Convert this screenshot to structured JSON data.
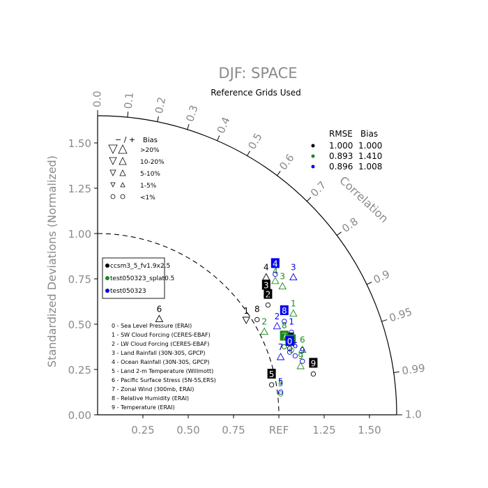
{
  "chart_data": {
    "type": "scatter",
    "title": "DJF: SPACE",
    "subtitle": "Reference Grids Used",
    "ylabel": "Standardized Deviations (Normalized)",
    "angular_label": "Correlation",
    "xlim": [
      0,
      1.65
    ],
    "ylim": [
      0,
      1.65
    ],
    "x_ticks": [
      {
        "value": 0.25,
        "label": "0.25"
      },
      {
        "value": 0.5,
        "label": "0.50"
      },
      {
        "value": 0.75,
        "label": "0.75"
      },
      {
        "value": 1.0,
        "label": "REF"
      },
      {
        "value": 1.25,
        "label": "1.25"
      },
      {
        "value": 1.5,
        "label": "1.50"
      }
    ],
    "y_ticks": [
      {
        "value": 0.0,
        "label": "0.00"
      },
      {
        "value": 0.25,
        "label": "0.25"
      },
      {
        "value": 0.5,
        "label": "0.50"
      },
      {
        "value": 0.75,
        "label": "0.75"
      },
      {
        "value": 1.0,
        "label": "1.00"
      },
      {
        "value": 1.25,
        "label": "1.25"
      },
      {
        "value": 1.5,
        "label": "1.50"
      }
    ],
    "correlation_ticks": [
      {
        "value": 0.0,
        "label": "0.0"
      },
      {
        "value": 0.1,
        "label": "0.1"
      },
      {
        "value": 0.2,
        "label": "0.2"
      },
      {
        "value": 0.3,
        "label": "0.3"
      },
      {
        "value": 0.4,
        "label": "0.4"
      },
      {
        "value": 0.5,
        "label": "0.5"
      },
      {
        "value": 0.6,
        "label": "0.6"
      },
      {
        "value": 0.7,
        "label": "0.7"
      },
      {
        "value": 0.8,
        "label": "0.8"
      },
      {
        "value": 0.9,
        "label": "0.9"
      },
      {
        "value": 0.95,
        "label": "0.95"
      },
      {
        "value": 0.99,
        "label": "0.99"
      },
      {
        "value": 1.0,
        "label": "1.0"
      }
    ],
    "ref_arc_radius": 1.0,
    "outer_arc_radius": 1.65,
    "bias_legend": {
      "header_symbols": "− / +",
      "header_label": "Bias",
      "rows": [
        {
          "label": ">20%",
          "size": 12
        },
        {
          "label": "10-20%",
          "size": 10
        },
        {
          "label": "5-10%",
          "size": 8
        },
        {
          "label": "1-5%",
          "size": 6
        },
        {
          "label": "<1%",
          "size": 5,
          "shape": "circle"
        }
      ]
    },
    "stats_legend": {
      "header_rmse": "RMSE",
      "header_bias": "Bias",
      "rows": [
        {
          "color": "#000000",
          "rmse": "1.000",
          "bias": "1.000"
        },
        {
          "color": "#1a8a1a",
          "rmse": "0.893",
          "bias": "1.410"
        },
        {
          "color": "#0000ee",
          "rmse": "0.896",
          "bias": "1.008"
        }
      ]
    },
    "series": [
      {
        "name": "ccsm3_5_fv1.9x2.5",
        "color": "#000000"
      },
      {
        "name": "test050323_splat0.5",
        "color": "#1a8a1a"
      },
      {
        "name": "test050323",
        "color": "#0000ee"
      }
    ],
    "variables": [
      "0 - Sea Level Pressure (ERAI)",
      "1 - SW Cloud Forcing (CERES-EBAF)",
      "2 - LW Cloud Forcing (CERES-EBAF)",
      "3 - Land Rainfall (30N-30S, GPCP)",
      "4 - Ocean Rainfall (30N-30S, GPCP)",
      "5 - Land 2-m Temperature (Willmott)",
      "6 - Pacific Surface Stress (5N-5S,ERS)",
      "7 - Zonal Wind (300mb, ERAI)",
      "8 - Relative Humidity (ERAI)",
      "9 - Temperature (ERAI)"
    ],
    "points": [
      {
        "series": 0,
        "id": "0",
        "x": 1.06,
        "y": 0.4,
        "boxed": true,
        "marker": "circle"
      },
      {
        "series": 0,
        "id": "1",
        "x": 0.82,
        "y": 0.55,
        "boxed": false,
        "marker": "triangle-down"
      },
      {
        "series": 0,
        "id": "2",
        "x": 0.94,
        "y": 0.64,
        "boxed": true,
        "marker": "circle"
      },
      {
        "series": 0,
        "id": "3",
        "x": 0.93,
        "y": 0.69,
        "boxed": true,
        "marker": "circle"
      },
      {
        "series": 0,
        "id": "4",
        "x": 0.93,
        "y": 0.79,
        "boxed": false,
        "marker": "triangle-up"
      },
      {
        "series": 0,
        "id": "5",
        "x": 0.96,
        "y": 0.2,
        "boxed": true,
        "marker": "circle"
      },
      {
        "series": 0,
        "id": "6",
        "x": 0.34,
        "y": 0.56,
        "boxed": false,
        "marker": "triangle-up"
      },
      {
        "series": 0,
        "id": "7",
        "x": 1.03,
        "y": 0.41,
        "boxed": true,
        "marker": "circle"
      },
      {
        "series": 0,
        "id": "8",
        "x": 0.88,
        "y": 0.56,
        "boxed": false,
        "marker": "circle"
      },
      {
        "series": 0,
        "id": "9",
        "x": 1.19,
        "y": 0.26,
        "boxed": true,
        "marker": "circle"
      },
      {
        "series": 1,
        "id": "0",
        "x": 1.07,
        "y": 0.39,
        "boxed": true,
        "marker": "circle"
      },
      {
        "series": 1,
        "id": "1",
        "x": 1.08,
        "y": 0.59,
        "boxed": false,
        "marker": "triangle-up"
      },
      {
        "series": 1,
        "id": "2",
        "x": 0.92,
        "y": 0.49,
        "boxed": false,
        "marker": "triangle-up"
      },
      {
        "series": 1,
        "id": "3",
        "x": 1.02,
        "y": 0.74,
        "boxed": false,
        "marker": "triangle-up"
      },
      {
        "series": 1,
        "id": "4",
        "x": 0.98,
        "y": 0.77,
        "boxed": false,
        "marker": "triangle-up"
      },
      {
        "series": 1,
        "id": "5",
        "x": 1.01,
        "y": 0.15,
        "boxed": false,
        "marker": "circle"
      },
      {
        "series": 1,
        "id": "6",
        "x": 1.13,
        "y": 0.39,
        "boxed": false,
        "marker": "triangle-up"
      },
      {
        "series": 1,
        "id": "7",
        "x": 1.03,
        "y": 0.41,
        "boxed": true,
        "marker": "circle"
      },
      {
        "series": 1,
        "id": "8",
        "x": 1.03,
        "y": 0.47,
        "boxed": false,
        "marker": "triangle-up"
      },
      {
        "series": 1,
        "id": "9",
        "x": 1.12,
        "y": 0.3,
        "boxed": false,
        "marker": "triangle-up"
      },
      {
        "series": 2,
        "id": "0",
        "x": 1.06,
        "y": 0.38,
        "boxed": true,
        "marker": "circle"
      },
      {
        "series": 2,
        "id": "1",
        "x": 1.07,
        "y": 0.49,
        "boxed": false,
        "marker": "circle"
      },
      {
        "series": 2,
        "id": "2",
        "x": 0.99,
        "y": 0.52,
        "boxed": false,
        "marker": "triangle-up"
      },
      {
        "series": 2,
        "id": "3",
        "x": 1.08,
        "y": 0.79,
        "boxed": false,
        "marker": "triangle-up"
      },
      {
        "series": 2,
        "id": "4",
        "x": 0.98,
        "y": 0.81,
        "boxed": true,
        "marker": "circle"
      },
      {
        "series": 2,
        "id": "5",
        "x": 1.01,
        "y": 0.16,
        "boxed": false,
        "marker": "circle"
      },
      {
        "series": 2,
        "id": "6",
        "x": 1.09,
        "y": 0.36,
        "boxed": false,
        "marker": "circle"
      },
      {
        "series": 2,
        "id": "7",
        "x": 1.01,
        "y": 0.35,
        "boxed": false,
        "marker": "triangle-up"
      },
      {
        "series": 2,
        "id": "8",
        "x": 1.03,
        "y": 0.55,
        "boxed": true,
        "marker": "circle"
      },
      {
        "series": 2,
        "id": "9",
        "x": 1.13,
        "y": 0.33,
        "boxed": false,
        "marker": "circle"
      }
    ]
  }
}
